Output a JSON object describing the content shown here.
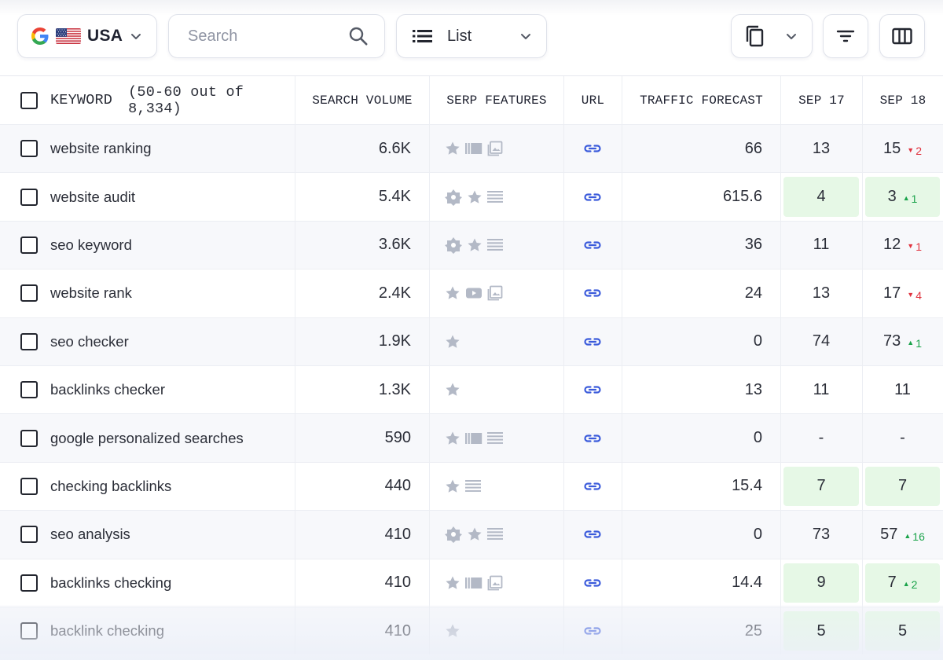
{
  "toolbar": {
    "country": "USA",
    "search_placeholder": "Search",
    "view_label": "List"
  },
  "colors": {
    "highlight": "#e6f8e6",
    "up": "#1aa34a",
    "down": "#e0333f",
    "link": "#3b5bdb",
    "icon_gray": "#b3b9c6"
  },
  "table": {
    "headers": {
      "keyword": "KEYWORD",
      "keyword_count": "(50-60 out of 8,334)",
      "search_volume": "SEARCH VOLUME",
      "serp_features": "SERP FEATURES",
      "url": "URL",
      "traffic_forecast": "TRAFFIC FORECAST",
      "sep17": "SEP 17",
      "sep18": "SEP 18"
    },
    "rows": [
      {
        "keyword": "website ranking",
        "volume": "6.6K",
        "serp": [
          "star-icon",
          "sitelinks-icon",
          "image-icon"
        ],
        "traffic": "66",
        "sep17": "13",
        "sep18": "15",
        "delta": "2",
        "dir": "down",
        "hl17": false,
        "hl18": false
      },
      {
        "keyword": "website audit",
        "volume": "5.4K",
        "serp": [
          "snippet-icon",
          "star-icon",
          "list-icon"
        ],
        "traffic": "615.6",
        "sep17": "4",
        "sep18": "3",
        "delta": "1",
        "dir": "up",
        "hl17": true,
        "hl18": true
      },
      {
        "keyword": "seo keyword",
        "volume": "3.6K",
        "serp": [
          "snippet-icon",
          "star-icon",
          "list-icon"
        ],
        "traffic": "36",
        "sep17": "11",
        "sep18": "12",
        "delta": "1",
        "dir": "down",
        "hl17": false,
        "hl18": false
      },
      {
        "keyword": "website rank",
        "volume": "2.4K",
        "serp": [
          "star-icon",
          "video-icon",
          "image-icon"
        ],
        "traffic": "24",
        "sep17": "13",
        "sep18": "17",
        "delta": "4",
        "dir": "down",
        "hl17": false,
        "hl18": false
      },
      {
        "keyword": "seo checker",
        "volume": "1.9K",
        "serp": [
          "star-icon"
        ],
        "traffic": "0",
        "sep17": "74",
        "sep18": "73",
        "delta": "1",
        "dir": "up",
        "hl17": false,
        "hl18": false
      },
      {
        "keyword": "backlinks checker",
        "volume": "1.3K",
        "serp": [
          "star-icon"
        ],
        "traffic": "13",
        "sep17": "11",
        "sep18": "11",
        "delta": "",
        "dir": "",
        "hl17": false,
        "hl18": false
      },
      {
        "keyword": "google personalized searches",
        "volume": "590",
        "serp": [
          "star-icon",
          "sitelinks-icon",
          "list-icon"
        ],
        "traffic": "0",
        "sep17": "-",
        "sep18": "-",
        "delta": "",
        "dir": "",
        "hl17": false,
        "hl18": false
      },
      {
        "keyword": "checking backlinks",
        "volume": "440",
        "serp": [
          "star-icon",
          "list-icon"
        ],
        "traffic": "15.4",
        "sep17": "7",
        "sep18": "7",
        "delta": "",
        "dir": "",
        "hl17": true,
        "hl18": true
      },
      {
        "keyword": "seo analysis",
        "volume": "410",
        "serp": [
          "snippet-icon",
          "star-icon",
          "list-icon"
        ],
        "traffic": "0",
        "sep17": "73",
        "sep18": "57",
        "delta": "16",
        "dir": "up",
        "hl17": false,
        "hl18": false
      },
      {
        "keyword": "backlinks checking",
        "volume": "410",
        "serp": [
          "star-icon",
          "sitelinks-icon",
          "image-icon"
        ],
        "traffic": "14.4",
        "sep17": "9",
        "sep18": "7",
        "delta": "2",
        "dir": "up",
        "hl17": true,
        "hl18": true
      },
      {
        "keyword": "backlink checking",
        "volume": "410",
        "serp": [
          "star-icon"
        ],
        "traffic": "25",
        "sep17": "5",
        "sep18": "5",
        "delta": "",
        "dir": "",
        "hl17": true,
        "hl18": true
      }
    ]
  }
}
